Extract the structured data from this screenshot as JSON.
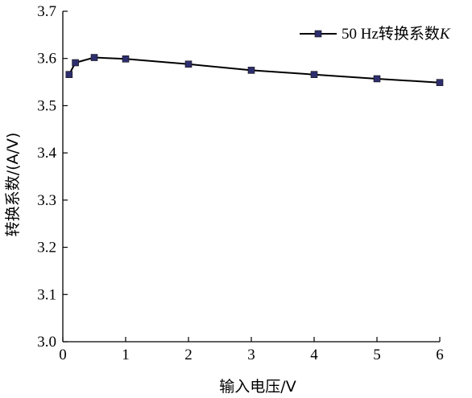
{
  "chart_data": {
    "type": "line",
    "title": "",
    "xlabel": "输入电压/V",
    "ylabel": "转换系数/(A/V)",
    "xlim": [
      0,
      6
    ],
    "ylim": [
      3.0,
      3.7
    ],
    "xticks": [
      0,
      1,
      2,
      3,
      4,
      5,
      6
    ],
    "yticks": [
      3.0,
      3.1,
      3.2,
      3.3,
      3.4,
      3.5,
      3.6,
      3.7
    ],
    "xtick_labels": [
      "0",
      "1",
      "2",
      "3",
      "4",
      "5",
      "6"
    ],
    "ytick_labels": [
      "3.0",
      "3.1",
      "3.2",
      "3.3",
      "3.4",
      "3.5",
      "3.6",
      "3.7"
    ],
    "grid": false,
    "legend_position": "top-right",
    "series": [
      {
        "name": "50 Hz转换系数",
        "name_italic_suffix": "K",
        "marker": "square",
        "color": "#2e2e6e",
        "line_color": "#000000",
        "x": [
          0.1,
          0.2,
          0.5,
          1,
          2,
          3,
          4,
          5,
          6
        ],
        "y": [
          3.566,
          3.591,
          3.602,
          3.599,
          3.588,
          3.575,
          3.566,
          3.557,
          3.549
        ]
      }
    ]
  }
}
